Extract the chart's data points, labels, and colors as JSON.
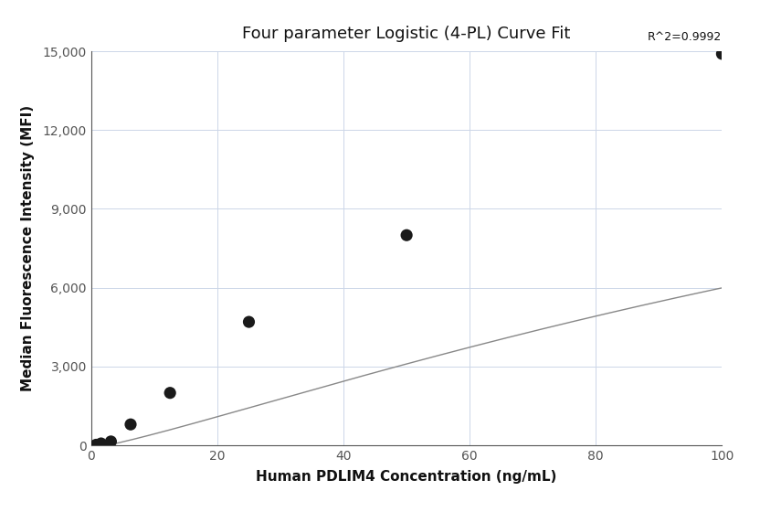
{
  "title": "Four parameter Logistic (4-PL) Curve Fit",
  "xlabel": "Human PDLIM4 Concentration (ng/mL)",
  "ylabel": "Median Fluorescence Intensity (MFI)",
  "r_squared": "R^2=0.9992",
  "x_data": [
    0.781,
    1.563,
    3.125,
    6.25,
    12.5,
    25,
    50,
    100
  ],
  "y_data": [
    25,
    75,
    150,
    800,
    2000,
    4700,
    8000,
    14900
  ],
  "xlim": [
    0,
    100
  ],
  "ylim": [
    0,
    15000
  ],
  "xticks": [
    0,
    20,
    40,
    60,
    80,
    100
  ],
  "yticks": [
    0,
    3000,
    6000,
    9000,
    12000,
    15000
  ],
  "marker_color": "#1a1a1a",
  "line_color": "#888888",
  "marker_size": 90,
  "background_color": "#ffffff",
  "grid_color": "#ccd6e8",
  "title_fontsize": 13,
  "label_fontsize": 11,
  "tick_fontsize": 10,
  "annotation_fontsize": 9
}
